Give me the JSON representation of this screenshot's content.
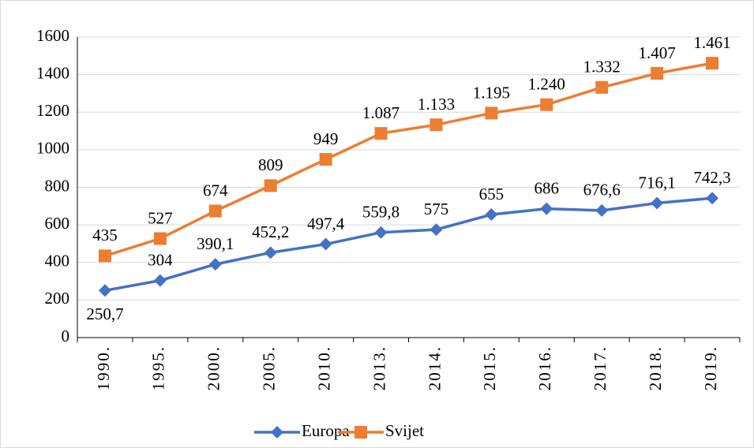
{
  "chart_data": {
    "type": "line",
    "categories": [
      "1990.",
      "1995.",
      "2000.",
      "2005.",
      "2010.",
      "2013.",
      "2014.",
      "2015.",
      "2016.",
      "2017.",
      "2018.",
      "2019."
    ],
    "series": [
      {
        "name": "Europa",
        "color": "#4472c4",
        "marker": "diamond",
        "values": [
          250.7,
          304,
          390.1,
          452.2,
          497.4,
          559.8,
          575,
          655,
          686,
          676.6,
          716.1,
          742.3
        ],
        "value_labels": [
          "250,7",
          "304",
          "390,1",
          "452,2",
          "497,4",
          "559,8",
          "575",
          "655",
          "686",
          "676,6",
          "716,1",
          "742,3"
        ]
      },
      {
        "name": "Svijet",
        "color": "#ed7d31",
        "marker": "square",
        "values": [
          435,
          527,
          674,
          809,
          949,
          1087,
          1133,
          1195,
          1240,
          1332,
          1407,
          1461
        ],
        "value_labels": [
          "435",
          "527",
          "674",
          "809",
          "949",
          "1.087",
          "1.133",
          "1.195",
          "1.240",
          "1.332",
          "1.407",
          "1.461"
        ]
      }
    ],
    "ylim": [
      0,
      1600
    ],
    "yticks": [
      0,
      200,
      400,
      600,
      800,
      1000,
      1200,
      1400,
      1600
    ],
    "grid": true,
    "legend": "bottom"
  }
}
